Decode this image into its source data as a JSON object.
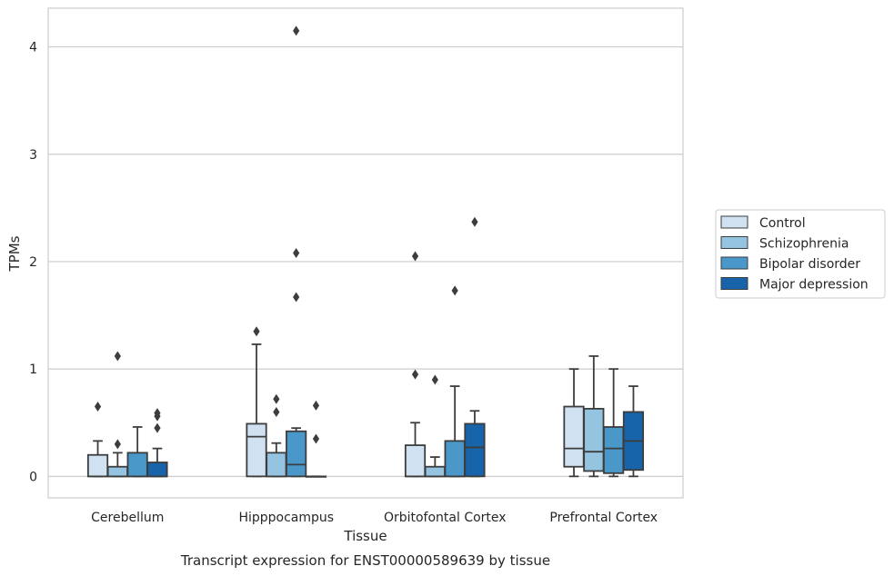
{
  "chart_data": {
    "type": "box",
    "caption": "Transcript expression for ENST00000589639 by tissue",
    "xlabel": "Tissue",
    "ylabel": "TPMs",
    "ylim": [
      -0.2,
      4.36
    ],
    "yticks": [
      0,
      1,
      2,
      3,
      4
    ],
    "grid": "horizontal",
    "legend_position": "right",
    "colors": {
      "Control": "#d0e1f2",
      "Schizophrenia": "#94c4df",
      "Bipolar disorder": "#4a98c9",
      "Major depression": "#1764ab",
      "grid": "#cccccc",
      "frame": "#cccccc",
      "box_edge": "#3d3d3d"
    },
    "categories": [
      "Cerebellum",
      "Hipppocampus",
      "Orbitofontal Cortex",
      "Prefrontal Cortex"
    ],
    "series": [
      {
        "name": "Control",
        "boxes": [
          {
            "whislo": 0,
            "q1": 0,
            "med": 0,
            "q3": 0.2,
            "whishi": 0.33,
            "fliers": [
              0.65
            ]
          },
          {
            "whislo": 0,
            "q1": 0,
            "med": 0.37,
            "q3": 0.49,
            "whishi": 1.23,
            "fliers": [
              1.35
            ]
          },
          {
            "whislo": 0,
            "q1": 0,
            "med": 0,
            "q3": 0.29,
            "whishi": 0.5,
            "fliers": [
              0.95,
              2.05
            ]
          },
          {
            "whislo": 0,
            "q1": 0.09,
            "med": 0.26,
            "q3": 0.65,
            "whishi": 1.0,
            "fliers": []
          }
        ]
      },
      {
        "name": "Schizophrenia",
        "boxes": [
          {
            "whislo": 0,
            "q1": 0,
            "med": 0,
            "q3": 0.09,
            "whishi": 0.22,
            "fliers": [
              0.3,
              1.12
            ]
          },
          {
            "whislo": 0,
            "q1": 0,
            "med": 0,
            "q3": 0.22,
            "whishi": 0.31,
            "fliers": [
              0.6,
              0.72
            ]
          },
          {
            "whislo": 0,
            "q1": 0,
            "med": 0,
            "q3": 0.09,
            "whishi": 0.18,
            "fliers": [
              0.9
            ]
          },
          {
            "whislo": 0,
            "q1": 0.05,
            "med": 0.23,
            "q3": 0.63,
            "whishi": 1.12,
            "fliers": []
          }
        ]
      },
      {
        "name": "Bipolar disorder",
        "boxes": [
          {
            "whislo": 0,
            "q1": 0,
            "med": 0,
            "q3": 0.22,
            "whishi": 0.46,
            "fliers": []
          },
          {
            "whislo": 0,
            "q1": 0,
            "med": 0.11,
            "q3": 0.42,
            "whishi": 0.45,
            "fliers": [
              1.67,
              2.08,
              4.15
            ]
          },
          {
            "whislo": 0,
            "q1": 0,
            "med": 0,
            "q3": 0.33,
            "whishi": 0.84,
            "fliers": [
              1.73
            ]
          },
          {
            "whislo": 0,
            "q1": 0.03,
            "med": 0.26,
            "q3": 0.46,
            "whishi": 1.0,
            "fliers": []
          }
        ]
      },
      {
        "name": "Major depression",
        "boxes": [
          {
            "whislo": 0,
            "q1": 0,
            "med": 0,
            "q3": 0.13,
            "whishi": 0.26,
            "fliers": [
              0.45,
              0.56,
              0.59
            ]
          },
          {
            "whislo": 0,
            "q1": 0,
            "med": 0,
            "q3": 0,
            "whishi": 0,
            "fliers": [
              0.35,
              0.66
            ]
          },
          {
            "whislo": 0,
            "q1": 0,
            "med": 0.27,
            "q3": 0.49,
            "whishi": 0.61,
            "fliers": [
              2.37
            ]
          },
          {
            "whislo": 0,
            "q1": 0.06,
            "med": 0.33,
            "q3": 0.6,
            "whishi": 0.84,
            "fliers": []
          }
        ]
      }
    ]
  }
}
